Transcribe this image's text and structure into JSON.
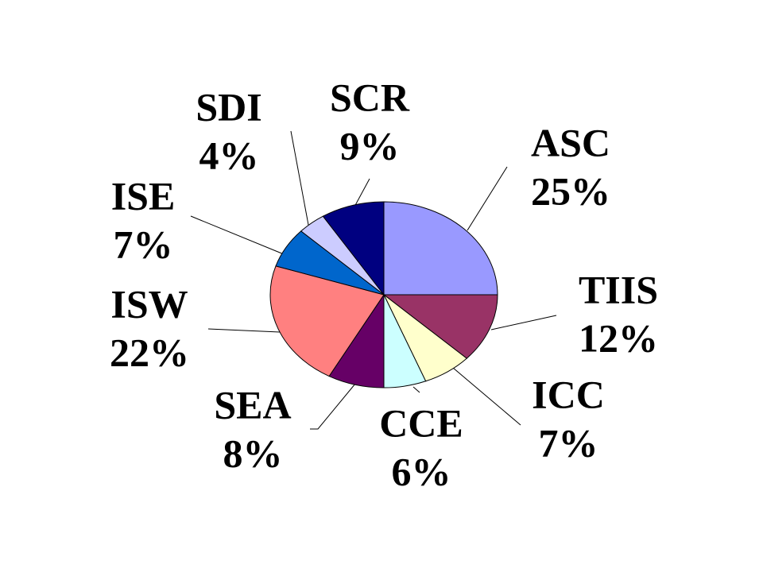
{
  "chart_data": {
    "type": "pie",
    "categories": [
      "ASC",
      "TIIS",
      "ICC",
      "CCE",
      "SEA",
      "ISW",
      "ISE",
      "SDI",
      "SCR"
    ],
    "values": [
      25,
      12,
      7,
      6,
      8,
      22,
      7,
      4,
      9
    ],
    "value_labels": [
      "25%",
      "12%",
      "7%",
      "6%",
      "8%",
      "22%",
      "7%",
      "4%",
      "9%"
    ],
    "colors": [
      "#9999ff",
      "#993366",
      "#ffffcc",
      "#ccffff",
      "#660066",
      "#ff8080",
      "#0066cc",
      "#ccccff",
      "#000080"
    ]
  }
}
